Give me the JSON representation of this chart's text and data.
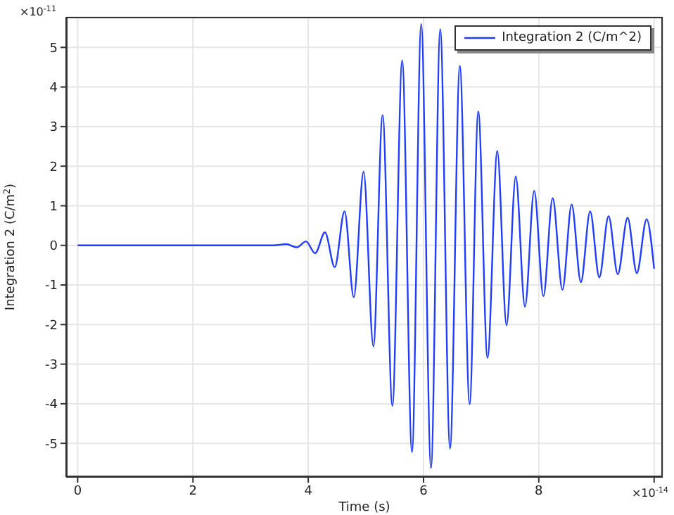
{
  "chart_data": {
    "type": "line",
    "xlabel": "Time (s)",
    "ylabel": "Integration 2 (C/m$^{2}$)",
    "annotations": [
      "×10$^{-11}$",
      "×10$^{-14}$"
    ],
    "xlim": [
      -0.2,
      10.15
    ],
    "xticks": [
      0,
      2,
      4,
      6,
      8,
      {
        "value": 10,
        "label": null
      }
    ],
    "ylim": [
      -5.85,
      5.77
    ],
    "yticks": [
      -5,
      -4,
      -3,
      -2,
      -1,
      0,
      1,
      2,
      3,
      4,
      5
    ],
    "grid": true,
    "legend": "top right",
    "marker": "none",
    "line_style": "solid",
    "series": [
      {
        "name": "Integration 2 (C/m^2)",
        "color": "#1f3cff",
        "x": [
          0,
          3.4,
          3.62,
          3.8,
          3.96,
          4.12,
          4.29,
          4.46,
          4.63,
          4.79,
          4.96,
          5.13,
          5.29,
          5.46,
          5.63,
          5.8,
          5.96,
          6.13,
          6.29,
          6.46,
          6.63,
          6.8,
          6.95,
          7.11,
          7.28,
          7.44,
          7.6,
          7.76,
          7.92,
          8.08,
          8.24,
          8.41,
          8.57,
          8.73,
          8.89,
          9.05,
          9.21,
          9.37,
          9.54,
          9.7,
          9.87,
          10.0
        ],
        "values": [
          0,
          0,
          0.03,
          -0.05,
          0.1,
          -0.2,
          0.33,
          -0.55,
          0.86,
          -1.31,
          1.86,
          -2.55,
          3.29,
          -4.05,
          4.67,
          -5.22,
          5.59,
          -5.62,
          5.46,
          -5.13,
          4.53,
          -4.01,
          3.38,
          -2.84,
          2.38,
          -2.02,
          1.74,
          -1.55,
          1.38,
          -1.28,
          1.19,
          -1.12,
          1.03,
          -0.93,
          0.86,
          -0.81,
          0.74,
          -0.73,
          0.7,
          -0.7,
          0.66,
          -0.59
        ]
      }
    ]
  }
}
